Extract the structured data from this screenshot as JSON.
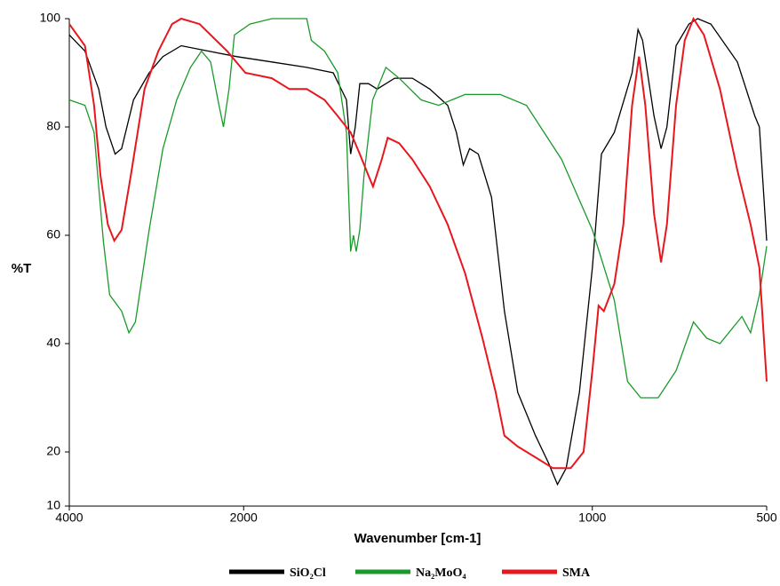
{
  "chart_data": {
    "type": "line",
    "x_label": "Wavenumber [cm-1]",
    "y_label": "%T",
    "xlim": [
      4000,
      500
    ],
    "xticks": [
      4000,
      2000,
      1000,
      500
    ],
    "x_scale_break": 2000,
    "x_scale_factor": 4,
    "ylim": [
      10,
      100
    ],
    "yticks": [
      10,
      20,
      40,
      60,
      80,
      100
    ],
    "legend": "bottom",
    "series": [
      {
        "name": "SiO₂Cl",
        "color": "#000000",
        "x": [
          4000,
          3821,
          3663,
          3579,
          3474,
          3400,
          3263,
          3084,
          2926,
          2716,
          2400,
          2084,
          1919,
          1819,
          1743,
          1705,
          1693,
          1680,
          1667,
          1642,
          1617,
          1567,
          1516,
          1466,
          1415,
          1390,
          1370,
          1352,
          1327,
          1289,
          1252,
          1214,
          1163,
          1126,
          1100,
          1075,
          1037,
          1000,
          974,
          937,
          886,
          869,
          856,
          823,
          803,
          786,
          760,
          723,
          698,
          660,
          584,
          534,
          521,
          500
        ],
        "values": [
          97,
          94,
          87,
          80,
          75,
          76,
          85,
          90,
          93,
          95,
          94,
          93,
          92,
          91,
          90,
          85,
          75,
          80,
          88,
          88,
          87,
          89,
          89,
          87,
          84,
          79,
          73,
          76,
          75,
          67,
          46,
          31,
          23,
          18,
          14,
          17,
          31,
          54,
          75,
          79,
          90,
          98,
          96,
          82,
          76,
          80,
          95,
          99,
          100,
          99,
          92,
          82,
          80,
          59
        ]
      },
      {
        "name": "Na₂MoO₄",
        "color": "#1a9a2a",
        "x": [
          4000,
          3821,
          3716,
          3610,
          3537,
          3400,
          3316,
          3242,
          3084,
          2926,
          2768,
          2610,
          2484,
          2379,
          2295,
          2232,
          2168,
          2105,
          1982,
          1919,
          1819,
          1806,
          1768,
          1730,
          1705,
          1693,
          1685,
          1677,
          1667,
          1655,
          1630,
          1592,
          1554,
          1491,
          1441,
          1365,
          1264,
          1189,
          1088,
          1000,
          937,
          899,
          861,
          811,
          760,
          710,
          672,
          634,
          571,
          546,
          521,
          500
        ],
        "values": [
          85,
          84,
          79,
          59,
          49,
          46,
          42,
          44,
          61,
          76,
          85,
          91,
          94,
          92,
          85,
          80,
          87,
          97,
          99,
          100,
          100,
          96,
          94,
          90,
          79,
          57,
          60,
          57,
          61,
          71,
          85,
          91,
          89,
          85,
          84,
          86,
          86,
          84,
          74,
          61,
          48,
          33,
          30,
          30,
          35,
          44,
          41,
          40,
          45,
          42,
          49,
          58
        ]
      },
      {
        "name": "SMA",
        "color": "#e8171e",
        "x": [
          4000,
          3821,
          3716,
          3642,
          3558,
          3484,
          3400,
          3295,
          3137,
          2979,
          2821,
          2716,
          2505,
          2189,
          1995,
          1919,
          1869,
          1819,
          1768,
          1730,
          1693,
          1667,
          1642,
          1629,
          1604,
          1587,
          1554,
          1516,
          1466,
          1415,
          1365,
          1315,
          1277,
          1252,
          1214,
          1163,
          1113,
          1062,
          1025,
          1000,
          982,
          967,
          937,
          911,
          886,
          866,
          848,
          823,
          803,
          786,
          760,
          735,
          710,
          680,
          634,
          584,
          546,
          521,
          500
        ],
        "values": [
          99,
          95,
          84,
          71,
          62,
          59,
          61,
          71,
          87,
          94,
          99,
          100,
          99,
          94,
          90,
          89,
          87,
          87,
          85,
          82,
          79,
          75,
          71,
          69,
          74,
          78,
          77,
          74,
          69,
          62,
          53,
          41,
          31,
          23,
          21,
          19,
          17,
          17,
          20,
          35,
          47,
          46,
          51,
          62,
          84,
          93,
          84,
          64,
          55,
          62,
          84,
          96,
          100,
          97,
          87,
          72,
          62,
          54,
          33
        ]
      }
    ]
  }
}
